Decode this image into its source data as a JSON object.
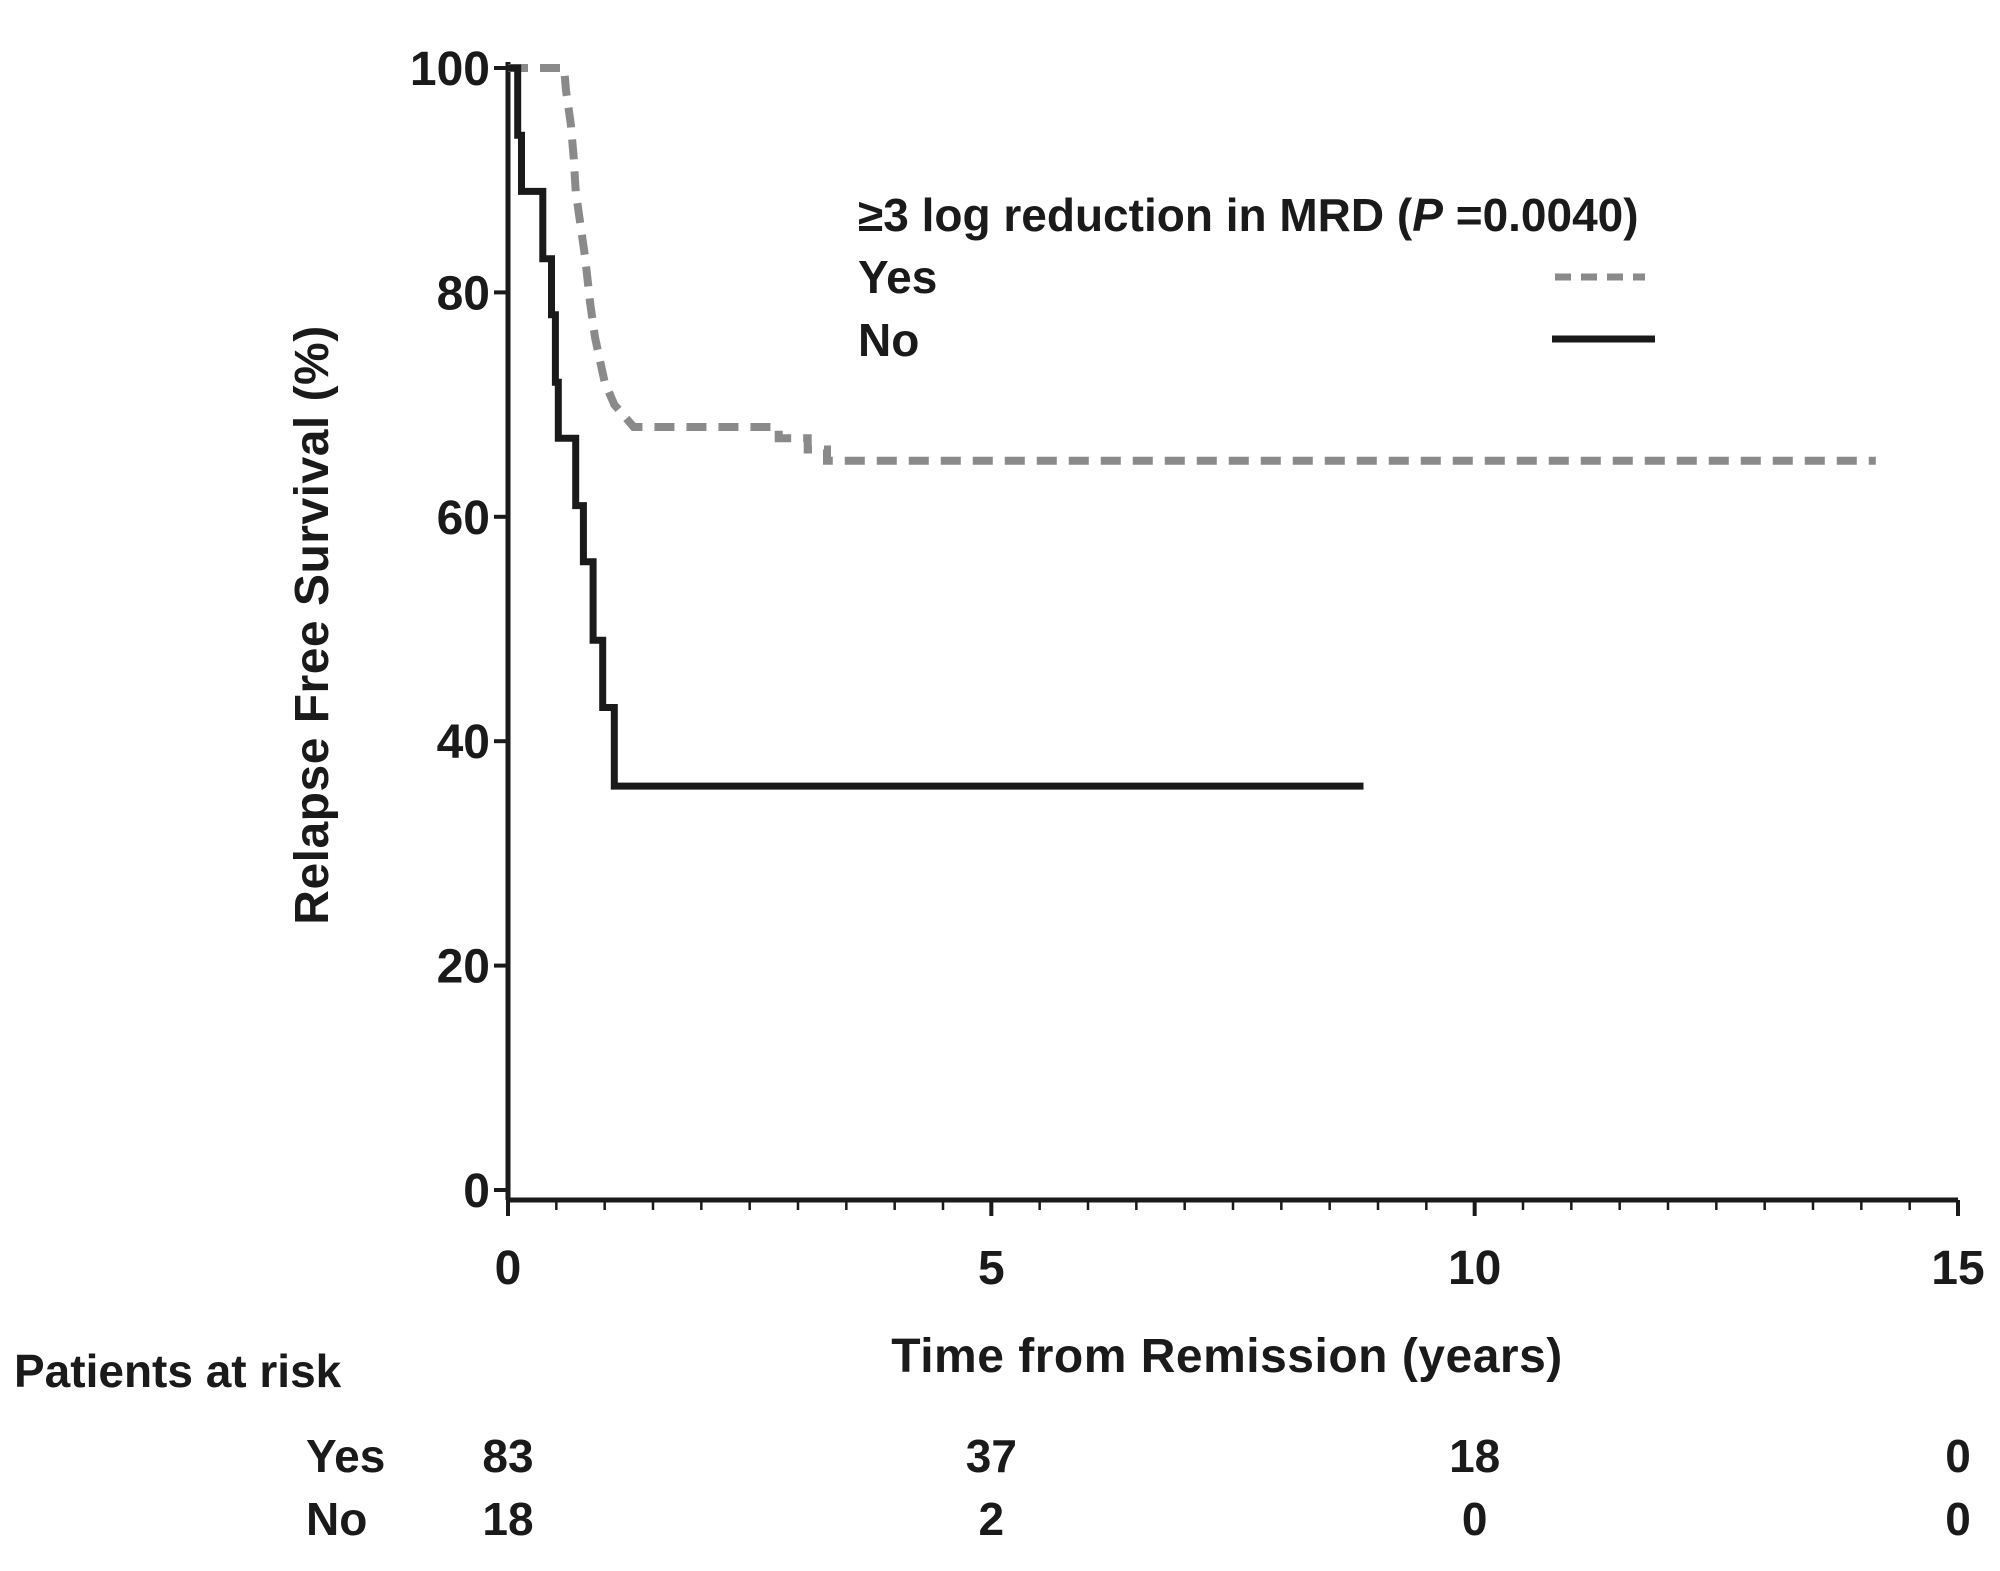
{
  "chart_data": {
    "type": "line",
    "subtype": "kaplan-meier step plot",
    "xlabel": "Time from Remission (years)",
    "ylabel": "Relapse Free Survival (%)",
    "xlim": [
      0,
      15
    ],
    "ylim": [
      0,
      100
    ],
    "x_ticks": [
      "0",
      "5",
      "10",
      "15"
    ],
    "y_ticks": [
      "0",
      "20",
      "40",
      "60",
      "80",
      "100"
    ],
    "grid": false,
    "legend": {
      "title_prefix": "≥3 log reduction in MRD (",
      "title_p": "P",
      "title_suffix": " =0.0040)",
      "placement": "top-right",
      "entries": [
        "Yes",
        "No"
      ]
    },
    "series": [
      {
        "name": "Yes",
        "color": "#8a8a8a",
        "style": "dashed",
        "points": [
          [
            0,
            100
          ],
          [
            0.58,
            100
          ],
          [
            0.6,
            98
          ],
          [
            0.65,
            95
          ],
          [
            0.68,
            92
          ],
          [
            0.7,
            89
          ],
          [
            0.75,
            86
          ],
          [
            0.8,
            83
          ],
          [
            0.85,
            79
          ],
          [
            0.9,
            76
          ],
          [
            0.95,
            74
          ],
          [
            1.0,
            72
          ],
          [
            1.1,
            70
          ],
          [
            1.2,
            69
          ],
          [
            1.3,
            68
          ],
          [
            2.8,
            68
          ],
          [
            2.8,
            67
          ],
          [
            3.1,
            67
          ],
          [
            3.1,
            66
          ],
          [
            3.3,
            66
          ],
          [
            3.3,
            65
          ],
          [
            14.15,
            65
          ]
        ]
      },
      {
        "name": "No",
        "color": "#1a1a1a",
        "style": "solid",
        "points": [
          [
            0,
            100
          ],
          [
            0.1,
            100
          ],
          [
            0.1,
            94
          ],
          [
            0.14,
            94
          ],
          [
            0.14,
            89
          ],
          [
            0.36,
            89
          ],
          [
            0.36,
            83
          ],
          [
            0.45,
            83
          ],
          [
            0.45,
            78
          ],
          [
            0.49,
            78
          ],
          [
            0.49,
            72
          ],
          [
            0.52,
            72
          ],
          [
            0.52,
            67
          ],
          [
            0.7,
            67
          ],
          [
            0.7,
            61
          ],
          [
            0.78,
            61
          ],
          [
            0.78,
            56
          ],
          [
            0.88,
            56
          ],
          [
            0.88,
            49
          ],
          [
            0.98,
            49
          ],
          [
            0.98,
            43
          ],
          [
            1.1,
            43
          ],
          [
            1.1,
            36
          ],
          [
            8.85,
            36
          ]
        ]
      }
    ],
    "risk_table": {
      "title": "Patients at risk",
      "times": [
        0,
        5,
        10,
        15
      ],
      "rows": [
        {
          "label": "Yes",
          "values": [
            "83",
            "37",
            "18",
            "0"
          ]
        },
        {
          "label": "No",
          "values": [
            "18",
            "2",
            "0",
            "0"
          ]
        }
      ]
    }
  }
}
